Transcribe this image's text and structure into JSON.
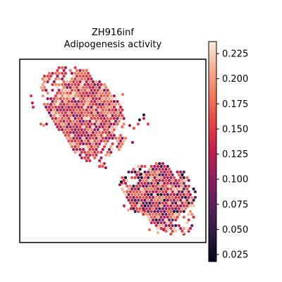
{
  "chart_data": {
    "type": "scatter",
    "title": "ZH916inf",
    "subtitle": "Adipogenesis activity",
    "xlabel": "",
    "ylabel": "",
    "grid": false,
    "axes_ticks_visible": false,
    "colormap": "rocket",
    "colorbar": {
      "min": 0.018,
      "max": 0.237,
      "ticks": [
        0.025,
        0.05,
        0.075,
        0.1,
        0.125,
        0.15,
        0.175,
        0.2,
        0.225
      ],
      "tick_labels": [
        "0.025",
        "0.050",
        "0.075",
        "0.100",
        "0.125",
        "0.150",
        "0.175",
        "0.200",
        "0.225"
      ],
      "placement": "right"
    },
    "colors": {
      "low": "#03051a",
      "mid": "#cb1b4f",
      "high": "#faebdd"
    },
    "spots": {
      "marker": "hexagonal spot",
      "approx_count": 1100,
      "regions": [
        {
          "name": "upper-left tissue",
          "value_range": [
            0.09,
            0.23
          ],
          "typical": 0.16
        },
        {
          "name": "lower-right tissue",
          "value_range": [
            0.03,
            0.22
          ],
          "typical": 0.14
        }
      ]
    }
  }
}
